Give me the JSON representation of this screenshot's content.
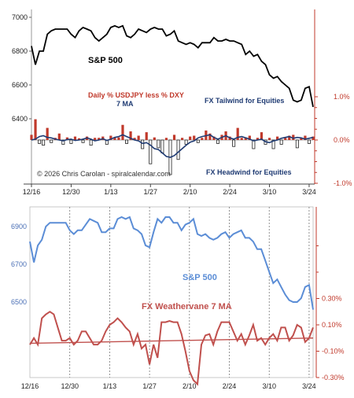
{
  "chart_data": [
    {
      "type": "bar",
      "title": "",
      "annotations": {
        "sp500_label": "S&P 500",
        "fx_label": "Daily % USDJPY less % DXY",
        "ma_label": "7 MA",
        "tailwind": "FX Tailwind for Equities",
        "headwind": "FX Headwind for Equities",
        "copyright": "© 2026 Chris Carolan - spiralcalendar.com"
      },
      "x_ticks": [
        "12/16",
        "12/30",
        "1/13",
        "1/27",
        "2/10",
        "2/24",
        "3/10",
        "3/24"
      ],
      "left_axis": {
        "ticks": [
          "7000",
          "6800",
          "6600",
          "6400"
        ],
        "ylim": [
          6200,
          7000
        ]
      },
      "right_axis": {
        "ticks": [
          "1.0%",
          "0.0%",
          "-1.0%"
        ],
        "ylim": [
          -1.0,
          1.0
        ]
      },
      "sp500": [
        6830,
        6720,
        6800,
        6800,
        6900,
        6920,
        6930,
        6930,
        6930,
        6930,
        6900,
        6880,
        6920,
        6940,
        6930,
        6920,
        6880,
        6860,
        6880,
        6900,
        6940,
        6950,
        6940,
        6950,
        6890,
        6880,
        6900,
        6930,
        6920,
        6910,
        6930,
        6940,
        6930,
        6930,
        6890,
        6900,
        6920,
        6860,
        6850,
        6840,
        6850,
        6840,
        6820,
        6850,
        6850,
        6850,
        6880,
        6860,
        6860,
        6870,
        6860,
        6860,
        6850,
        6840,
        6780,
        6800,
        6770,
        6780,
        6740,
        6720,
        6660,
        6640,
        6650,
        6620,
        6600,
        6580,
        6510,
        6500,
        6510,
        6580,
        6590,
        6470
      ],
      "fx_daily": [
        0.12,
        0.48,
        -0.08,
        -0.12,
        0.28,
        -0.06,
        0.05,
        0.15,
        -0.1,
        0.06,
        -0.08,
        0.08,
        0.04,
        -0.06,
        0.08,
        -0.12,
        0.05,
        0.05,
        0.08,
        -0.1,
        0.1,
        0.06,
        0.06,
        0.35,
        -0.08,
        0.2,
        0.05,
        0.1,
        -0.2,
        0.18,
        -0.55,
        0.06,
        -0.18,
        -0.3,
        0.05,
        -0.8,
        0.12,
        -0.45,
        0.05,
        -0.1,
        0.08,
        0.1,
        -0.06,
        0.05,
        0.22,
        0.15,
        0.08,
        -0.08,
        0.12,
        0.2,
        0.08,
        -0.15,
        0.28,
        0.05,
        0.06,
        0.1,
        -0.2,
        0.05,
        0.18,
        -0.1,
        0.05,
        -0.2,
        0.08,
        -0.1,
        0.05,
        0.1,
        0.12,
        -0.18,
        0.05,
        0.1,
        -0.08,
        0.08
      ],
      "fx_ma": [
        0.0,
        0.02,
        0.08,
        0.1,
        0.06,
        0.05,
        0.02,
        0.0,
        -0.02,
        0.01,
        0.02,
        -0.01,
        0.0,
        0.02,
        0.05,
        0.02,
        -0.02,
        0.0,
        0.03,
        -0.01,
        0.02,
        0.06,
        0.08,
        0.12,
        0.08,
        0.04,
        0.0,
        -0.02,
        -0.08,
        -0.06,
        -0.12,
        -0.2,
        -0.22,
        -0.3,
        -0.38,
        -0.4,
        -0.36,
        -0.28,
        -0.2,
        -0.12,
        -0.05,
        -0.02,
        0.05,
        0.08,
        0.1,
        0.12,
        0.06,
        0.02,
        0.06,
        0.1,
        0.05,
        0.02,
        0.06,
        0.08,
        0.05,
        0.02,
        -0.02,
        0.0,
        0.02,
        -0.04,
        -0.06,
        -0.02,
        0.0,
        0.04,
        0.06,
        0.08,
        0.04,
        0.06,
        0.05,
        0.02,
        0.04,
        0.06
      ]
    },
    {
      "type": "line",
      "title": "",
      "annotations": {
        "sp500_label": "S&P 500",
        "weathervane_label": "FX Weathervane 7 MA"
      },
      "x_ticks": [
        "12/16",
        "12/30",
        "1/13",
        "1/27",
        "2/10",
        "2/24",
        "3/10",
        "3/24"
      ],
      "left_axis": {
        "ticks": [
          "6900",
          "6700",
          "6500"
        ],
        "ylim": [
          6400,
          7000
        ]
      },
      "right_axis": {
        "ticks": [
          "0.30%",
          "0.10%",
          "-0.10%",
          "-0.30%"
        ]
      },
      "sp500": [
        6820,
        6710,
        6800,
        6830,
        6900,
        6920,
        6920,
        6920,
        6920,
        6920,
        6880,
        6860,
        6880,
        6880,
        6910,
        6940,
        6930,
        6920,
        6870,
        6870,
        6890,
        6890,
        6940,
        6950,
        6940,
        6950,
        6890,
        6880,
        6860,
        6800,
        6790,
        6870,
        6940,
        6920,
        6950,
        6950,
        6920,
        6920,
        6880,
        6910,
        6920,
        6940,
        6860,
        6850,
        6860,
        6840,
        6830,
        6840,
        6860,
        6870,
        6840,
        6860,
        6870,
        6880,
        6840,
        6840,
        6820,
        6780,
        6780,
        6720,
        6660,
        6600,
        6620,
        6580,
        6540,
        6510,
        6500,
        6500,
        6520,
        6580,
        6590,
        6460
      ],
      "weathervane_ma": [
        -0.05,
        0.0,
        -0.05,
        0.15,
        0.18,
        0.2,
        0.18,
        0.08,
        -0.02,
        -0.02,
        0.0,
        -0.05,
        -0.02,
        0.05,
        0.05,
        0.0,
        -0.05,
        -0.05,
        -0.02,
        0.05,
        0.1,
        0.12,
        0.15,
        0.12,
        0.08,
        0.05,
        -0.05,
        0.03,
        -0.08,
        -0.05,
        -0.2,
        -0.05,
        -0.15,
        0.12,
        0.12,
        0.13,
        0.12,
        0.12,
        0.03,
        -0.1,
        -0.25,
        -0.32,
        -0.35,
        -0.05,
        0.02,
        0.03,
        -0.05,
        0.05,
        0.12,
        0.12,
        0.12,
        0.05,
        -0.02,
        0.03,
        -0.05,
        0.02,
        0.1,
        -0.02,
        0.0,
        -0.05,
        0.0,
        0.03,
        -0.02,
        0.08,
        0.08,
        -0.02,
        0.02,
        0.1,
        0.08,
        -0.03,
        0.0,
        0.08
      ],
      "trendline": {
        "start": -0.04,
        "end": 0.0
      }
    }
  ],
  "colors": {
    "sp500_top": "#000000",
    "bar": "#c0392b",
    "bar_neg": "#ffffff",
    "ma_top": "#1f3b73",
    "sp500_bottom": "#5b8dd6",
    "weathervane": "#c0504d",
    "copyright": "#333333",
    "tail": "#1f3b73",
    "head": "#1f3b73"
  }
}
